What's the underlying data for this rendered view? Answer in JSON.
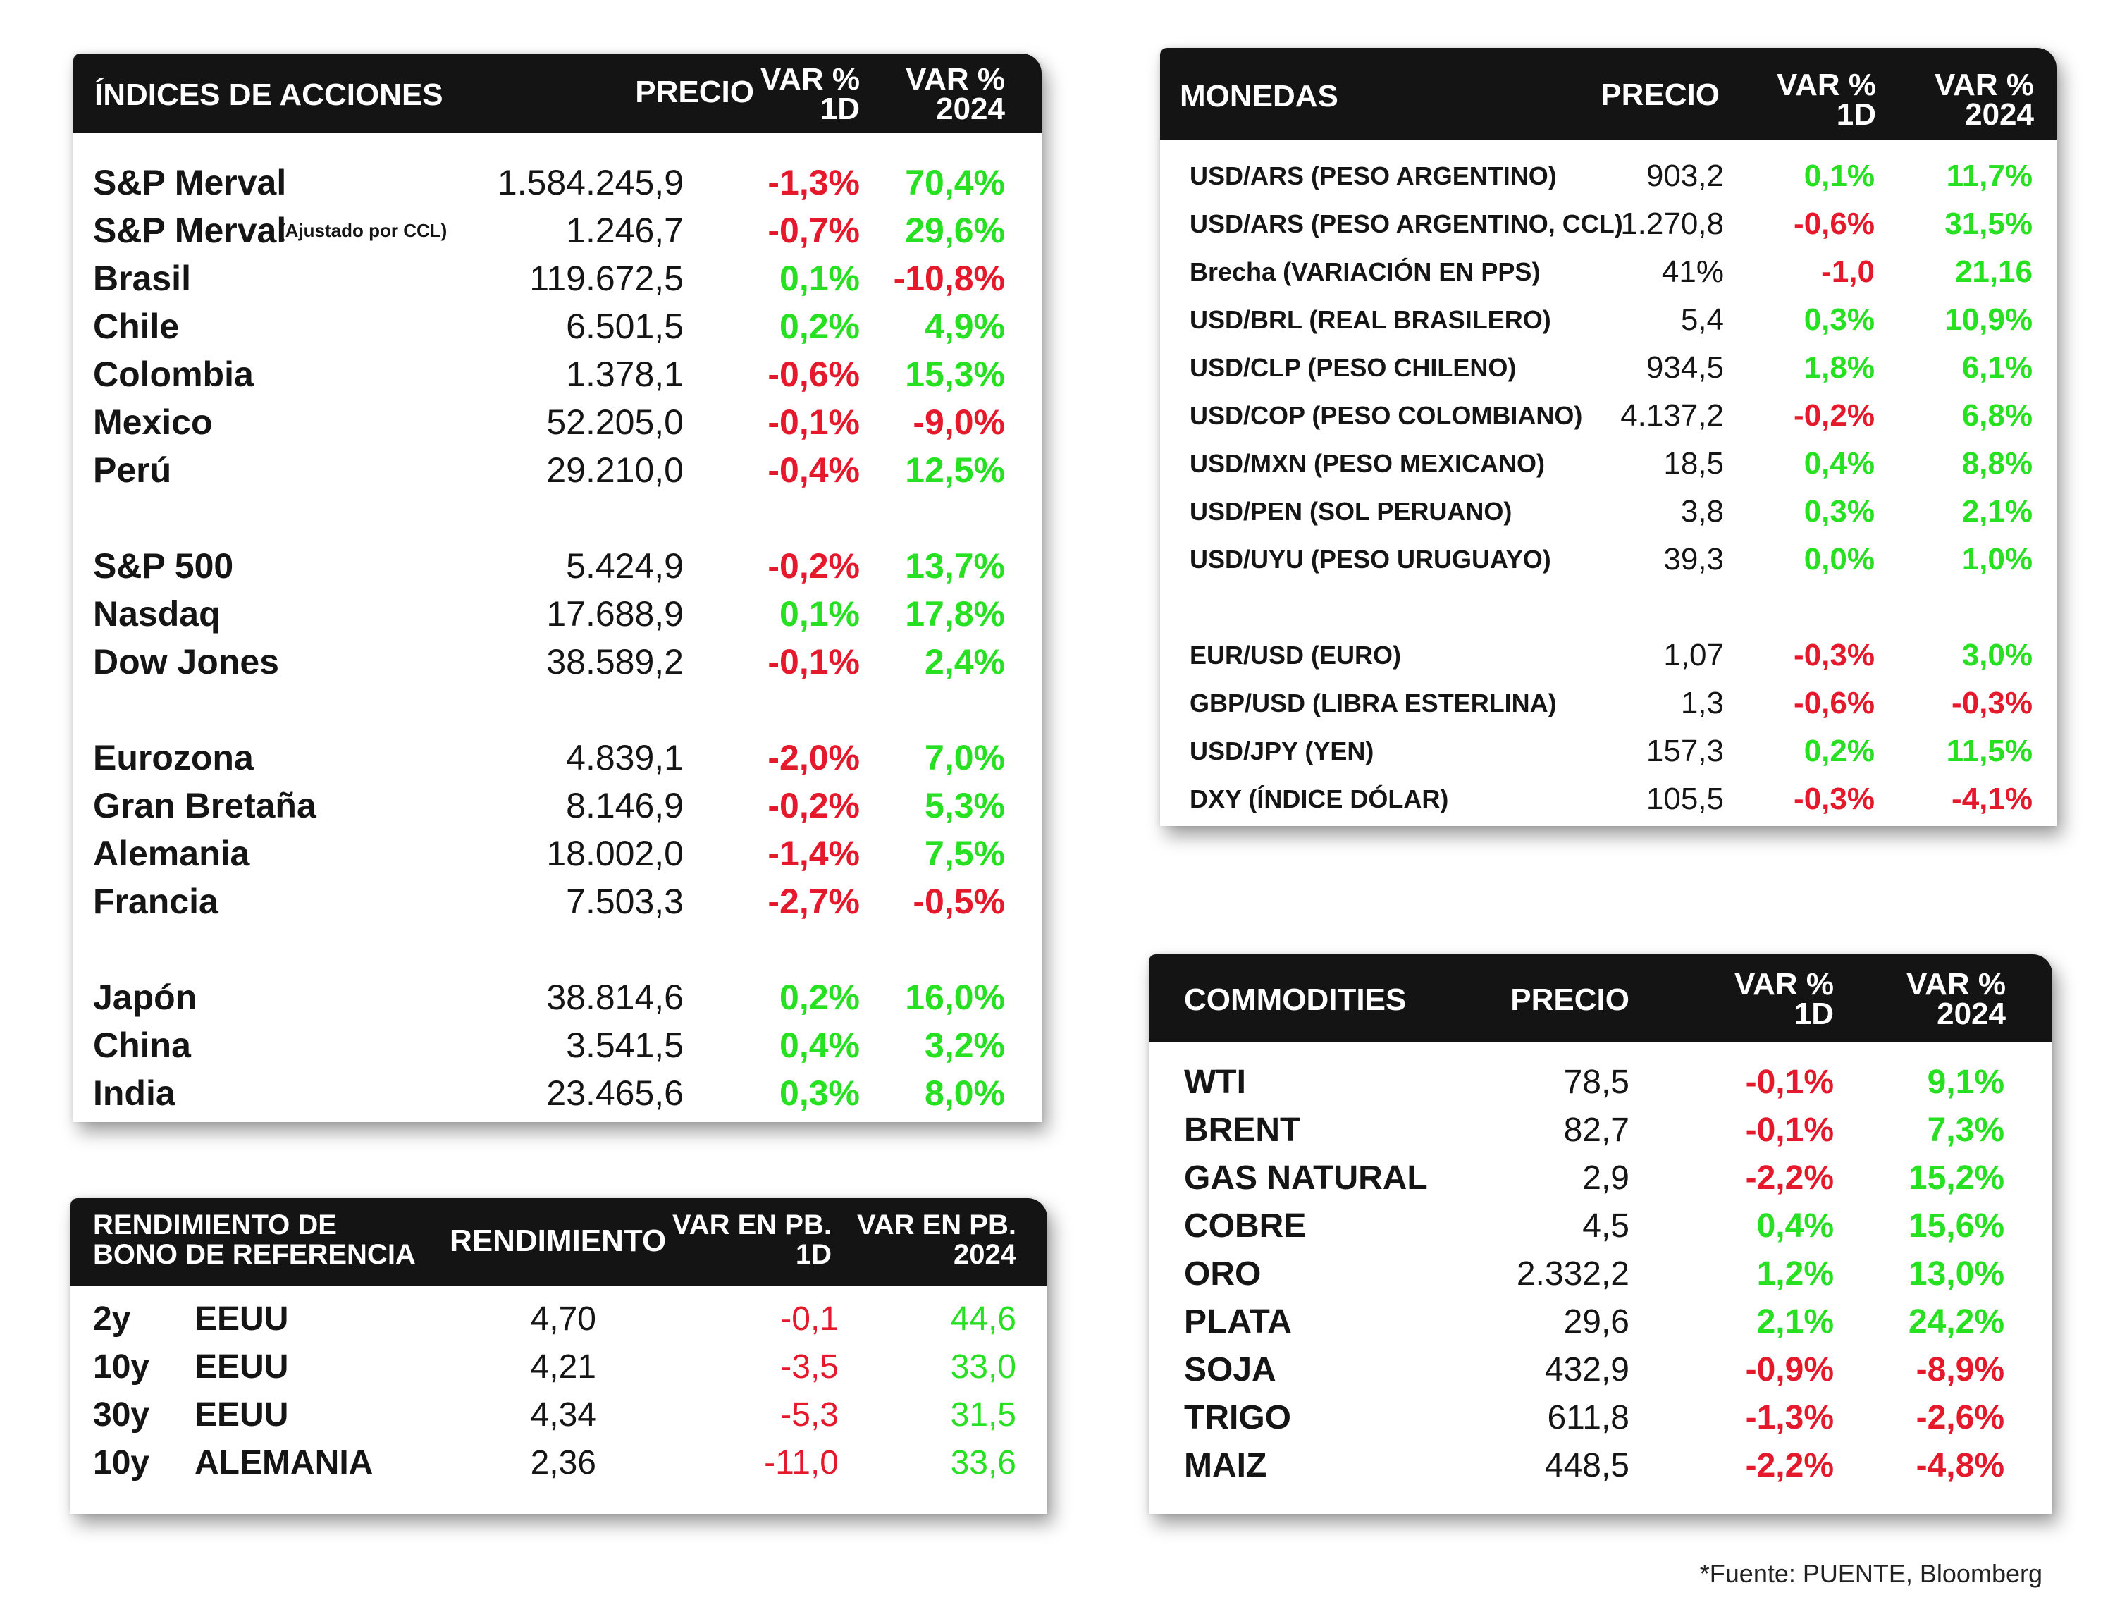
{
  "colors": {
    "negative": "#e4192b",
    "positive": "#26e021",
    "header_bg": "#141414"
  },
  "indices": {
    "headers": {
      "name": "ÍNDICES DE ACCIONES",
      "price": "PRECIO",
      "d1_line1": "VAR %",
      "d1_line2": "1D",
      "y_line1": "VAR %",
      "y_line2": "2024"
    },
    "rows": [
      {
        "name": "S&P Merval",
        "note": "",
        "price": "1.584.245,9",
        "d1": "-1,3%",
        "ytd": "70,4%"
      },
      {
        "name": "S&P Merval",
        "note": "(Ajustado por CCL)",
        "price": "1.246,7",
        "d1": "-0,7%",
        "ytd": "29,6%"
      },
      {
        "name": "Brasil",
        "note": "",
        "price": "119.672,5",
        "d1": "0,1%",
        "ytd": "-10,8%"
      },
      {
        "name": "Chile",
        "note": "",
        "price": "6.501,5",
        "d1": "0,2%",
        "ytd": "4,9%"
      },
      {
        "name": "Colombia",
        "note": "",
        "price": "1.378,1",
        "d1": "-0,6%",
        "ytd": "15,3%"
      },
      {
        "name": "Mexico",
        "note": "",
        "price": "52.205,0",
        "d1": "-0,1%",
        "ytd": "-9,0%"
      },
      {
        "name": "Perú",
        "note": "",
        "price": "29.210,0",
        "d1": "-0,4%",
        "ytd": "12,5%"
      },
      {
        "name": "S&P 500",
        "note": "",
        "price": "5.424,9",
        "d1": "-0,2%",
        "ytd": "13,7%"
      },
      {
        "name": "Nasdaq",
        "note": "",
        "price": "17.688,9",
        "d1": "0,1%",
        "ytd": "17,8%"
      },
      {
        "name": "Dow Jones",
        "note": "",
        "price": "38.589,2",
        "d1": "-0,1%",
        "ytd": "2,4%"
      },
      {
        "name": "Eurozona",
        "note": "",
        "price": "4.839,1",
        "d1": "-2,0%",
        "ytd": "7,0%"
      },
      {
        "name": "Gran Bretaña",
        "note": "",
        "price": "8.146,9",
        "d1": "-0,2%",
        "ytd": "5,3%"
      },
      {
        "name": "Alemania",
        "note": "",
        "price": "18.002,0",
        "d1": "-1,4%",
        "ytd": "7,5%"
      },
      {
        "name": "Francia",
        "note": "",
        "price": "7.503,3",
        "d1": "-2,7%",
        "ytd": "-0,5%"
      },
      {
        "name": "Japón",
        "note": "",
        "price": "38.814,6",
        "d1": "0,2%",
        "ytd": "16,0%"
      },
      {
        "name": "China",
        "note": "",
        "price": "3.541,5",
        "d1": "0,4%",
        "ytd": "3,2%"
      },
      {
        "name": "India",
        "note": "",
        "price": "23.465,6",
        "d1": "0,3%",
        "ytd": "8,0%"
      }
    ]
  },
  "currencies": {
    "headers": {
      "name": "MONEDAS",
      "price": "PRECIO",
      "d1_line1": "VAR %",
      "d1_line2": "1D",
      "y_line1": "VAR %",
      "y_line2": "2024"
    },
    "rows": [
      {
        "name": "USD/ARS (PESO ARGENTINO)",
        "price": "903,2",
        "d1": "0,1%",
        "ytd": "11,7%"
      },
      {
        "name": "USD/ARS (PESO ARGENTINO, CCL)",
        "price": "1.270,8",
        "d1": "-0,6%",
        "ytd": "31,5%"
      },
      {
        "name": "Brecha (VARIACIÓN EN PPS)",
        "price": "41%",
        "d1": "-1,0",
        "ytd": "21,16"
      },
      {
        "name": "USD/BRL (REAL BRASILERO)",
        "price": "5,4",
        "d1": "0,3%",
        "ytd": "10,9%"
      },
      {
        "name": "USD/CLP (PESO CHILENO)",
        "price": "934,5",
        "d1": "1,8%",
        "ytd": "6,1%"
      },
      {
        "name": "USD/COP (PESO COLOMBIANO)",
        "price": "4.137,2",
        "d1": "-0,2%",
        "ytd": "6,8%"
      },
      {
        "name": "USD/MXN (PESO MEXICANO)",
        "price": "18,5",
        "d1": "0,4%",
        "ytd": "8,8%"
      },
      {
        "name": "USD/PEN (SOL PERUANO)",
        "price": "3,8",
        "d1": "0,3%",
        "ytd": "2,1%"
      },
      {
        "name": "USD/UYU (PESO URUGUAYO)",
        "price": "39,3",
        "d1": "0,0%",
        "ytd": "1,0%"
      },
      {
        "name": "EUR/USD (EURO)",
        "price": "1,07",
        "d1": "-0,3%",
        "ytd": "3,0%"
      },
      {
        "name": "GBP/USD (LIBRA ESTERLINA)",
        "price": "1,3",
        "d1": "-0,6%",
        "ytd": "-0,3%"
      },
      {
        "name": "USD/JPY (YEN)",
        "price": "157,3",
        "d1": "0,2%",
        "ytd": "11,5%"
      },
      {
        "name": "DXY (ÍNDICE DÓLAR)",
        "price": "105,5",
        "d1": "-0,3%",
        "ytd": "-4,1%"
      }
    ]
  },
  "bonds": {
    "headers": {
      "name_line1": "RENDIMIENTO DE",
      "name_line2": "BONO DE REFERENCIA",
      "yield": "RENDIMIENTO",
      "d1_line1": "VAR EN PB.",
      "d1_line2": "1D",
      "y_line1": "VAR EN PB.",
      "y_line2": "2024"
    },
    "rows": [
      {
        "term": "2y",
        "country": "EEUU",
        "yield": "4,70",
        "d1": "-0,1",
        "ytd": "44,6"
      },
      {
        "term": "10y",
        "country": "EEUU",
        "yield": "4,21",
        "d1": "-3,5",
        "ytd": "33,0"
      },
      {
        "term": "30y",
        "country": "EEUU",
        "yield": "4,34",
        "d1": "-5,3",
        "ytd": "31,5"
      },
      {
        "term": "10y",
        "country": "ALEMANIA",
        "yield": "2,36",
        "d1": "-11,0",
        "ytd": "33,6"
      }
    ]
  },
  "commodities": {
    "headers": {
      "name": "COMMODITIES",
      "price": "PRECIO",
      "d1_line1": "VAR %",
      "d1_line2": "1D",
      "y_line1": "VAR %",
      "y_line2": "2024"
    },
    "rows": [
      {
        "name": "WTI",
        "price": "78,5",
        "d1": "-0,1%",
        "ytd": "9,1%"
      },
      {
        "name": "BRENT",
        "price": "82,7",
        "d1": "-0,1%",
        "ytd": "7,3%"
      },
      {
        "name": "GAS NATURAL",
        "price": "2,9",
        "d1": "-2,2%",
        "ytd": "15,2%"
      },
      {
        "name": "COBRE",
        "price": "4,5",
        "d1": "0,4%",
        "ytd": "15,6%"
      },
      {
        "name": "ORO",
        "price": "2.332,2",
        "d1": "1,2%",
        "ytd": "13,0%"
      },
      {
        "name": "PLATA",
        "price": "29,6",
        "d1": "2,1%",
        "ytd": "24,2%"
      },
      {
        "name": "SOJA",
        "price": "432,9",
        "d1": "-0,9%",
        "ytd": "-8,9%"
      },
      {
        "name": "TRIGO",
        "price": "611,8",
        "d1": "-1,3%",
        "ytd": "-2,6%"
      },
      {
        "name": "MAIZ",
        "price": "448,5",
        "d1": "-2,2%",
        "ytd": "-4,8%"
      }
    ]
  },
  "source": "*Fuente: PUENTE, Bloomberg"
}
